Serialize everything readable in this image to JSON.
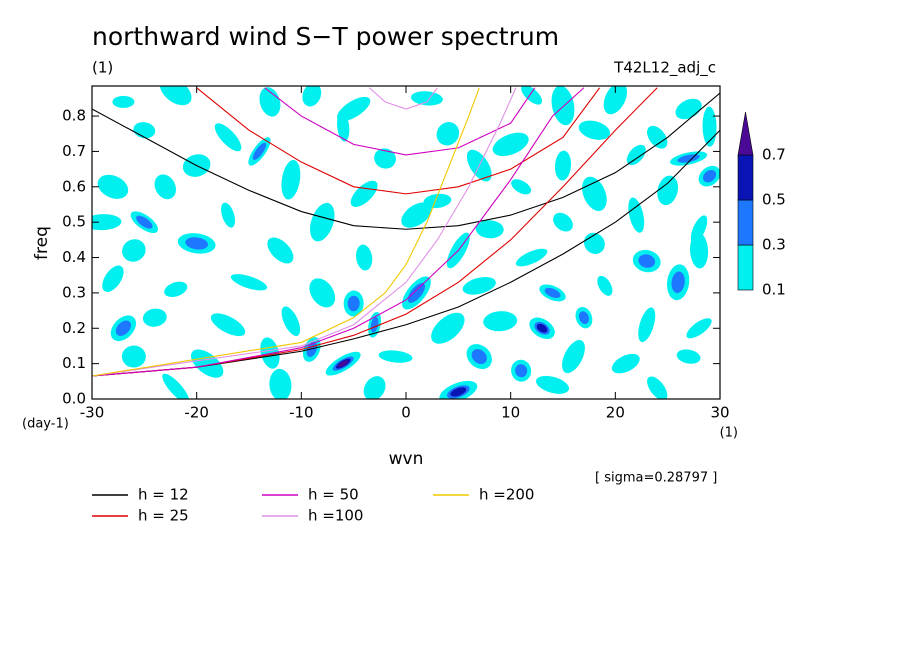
{
  "chart_data": {
    "type": "contour",
    "title": "northward wind S−T power spectrum",
    "subtitle": "(1)",
    "run_label": "T42L12_adj_c",
    "x_label": "wvn",
    "y_label": "freq",
    "y_unit": "(day-1)",
    "x_unit": "(1)",
    "annotation": "[ sigma=0.28797 ]",
    "xlim": [
      -30,
      30
    ],
    "ylim": [
      0,
      0.885
    ],
    "xticks": [
      -30,
      -20,
      -10,
      0,
      10,
      20,
      30
    ],
    "yticks": [
      {
        "value": 0,
        "label": "0.0"
      },
      0.1,
      0.2,
      0.3,
      0.4,
      0.5,
      0.6,
      0.7,
      0.8
    ],
    "contours": {
      "levels": [
        0.1,
        0.3,
        0.5,
        0.7
      ],
      "colors": [
        "#00f0f0",
        "#1e78ff",
        "#0a14b4",
        "#4b0a96"
      ],
      "x": [
        -27,
        -22,
        -13,
        -9,
        -5,
        2,
        12,
        15,
        20,
        27,
        -25,
        -17,
        -6,
        4,
        10,
        18,
        24,
        29,
        -14,
        -20,
        -2,
        7,
        15,
        22,
        27,
        -28,
        -23,
        -11,
        -4,
        3,
        11,
        18,
        25,
        29,
        -29,
        -25,
        -17,
        -8,
        1,
        8,
        15,
        22,
        28,
        -26,
        -20,
        -12,
        -4,
        5,
        12,
        23,
        18,
        28,
        -28,
        -22,
        -15,
        -8,
        -5,
        1,
        7,
        14,
        19,
        26,
        -27,
        -24,
        -17,
        -11,
        -3,
        4,
        9,
        13,
        17,
        23,
        28,
        -26,
        -19,
        -13,
        -9,
        -6,
        -1,
        7,
        11,
        16,
        21,
        27,
        -22,
        -12,
        -3,
        5,
        14,
        24
      ],
      "y": [
        0.84,
        0.87,
        0.84,
        0.86,
        0.82,
        0.85,
        0.86,
        0.83,
        0.85,
        0.82,
        0.76,
        0.74,
        0.77,
        0.75,
        0.72,
        0.76,
        0.74,
        0.77,
        0.7,
        0.66,
        0.68,
        0.66,
        0.66,
        0.69,
        0.68,
        0.6,
        0.6,
        0.62,
        0.58,
        0.56,
        0.6,
        0.58,
        0.59,
        0.63,
        0.5,
        0.5,
        0.52,
        0.5,
        0.52,
        0.48,
        0.5,
        0.52,
        0.48,
        0.42,
        0.44,
        0.42,
        0.4,
        0.42,
        0.4,
        0.39,
        0.44,
        0.42,
        0.34,
        0.31,
        0.33,
        0.3,
        0.27,
        0.3,
        0.32,
        0.3,
        0.32,
        0.33,
        0.2,
        0.23,
        0.21,
        0.22,
        0.21,
        0.2,
        0.22,
        0.2,
        0.23,
        0.21,
        0.2,
        0.12,
        0.1,
        0.13,
        0.14,
        0.1,
        0.12,
        0.12,
        0.08,
        0.12,
        0.1,
        0.12,
        0.03,
        0.04,
        0.03,
        0.02,
        0.04,
        0.03
      ],
      "values": [
        0.2,
        0.15,
        0.2,
        0.2,
        0.2,
        0.2,
        0.2,
        0.2,
        0.2,
        0.25,
        0.2,
        0.2,
        0.2,
        0.2,
        0.2,
        0.2,
        0.2,
        0.25,
        0.4,
        0.2,
        0.2,
        0.2,
        0.2,
        0.2,
        0.35,
        0.2,
        0.2,
        0.2,
        0.2,
        0.2,
        0.2,
        0.2,
        0.2,
        0.45,
        0.2,
        0.4,
        0.2,
        0.2,
        0.2,
        0.2,
        0.2,
        0.2,
        0.2,
        0.2,
        0.35,
        0.2,
        0.2,
        0.2,
        0.2,
        0.35,
        0.2,
        0.2,
        0.2,
        0.2,
        0.2,
        0.2,
        0.35,
        0.35,
        0.2,
        0.3,
        0.2,
        0.35,
        0.35,
        0.2,
        0.2,
        0.2,
        0.4,
        0.2,
        0.2,
        0.55,
        0.35,
        0.2,
        0.2,
        0.2,
        0.2,
        0.2,
        0.35,
        0.75,
        0.2,
        0.45,
        0.35,
        0.2,
        0.2,
        0.2,
        0.2,
        0.2,
        0.2,
        0.6,
        0.2,
        0.2
      ]
    },
    "series": [
      {
        "name": "h = 12",
        "color": "#000000",
        "curves": [
          {
            "x": [
              -30,
              -25,
              -20,
              -15,
              -10,
              -5,
              0,
              5,
              10,
              15,
              20,
              25,
              30
            ],
            "values": [
              0.82,
              0.74,
              0.66,
              0.59,
              0.53,
              0.49,
              0.48,
              0.49,
              0.52,
              0.57,
              0.64,
              0.74,
              0.865
            ]
          },
          {
            "x": [
              -30,
              -20,
              -10,
              -5,
              0,
              5,
              10,
              15,
              20,
              25,
              30
            ],
            "values": [
              0.065,
              0.09,
              0.135,
              0.17,
              0.21,
              0.26,
              0.33,
              0.41,
              0.5,
              0.61,
              0.76
            ]
          }
        ]
      },
      {
        "name": "h = 25",
        "color": "#e00000",
        "curves": [
          {
            "x": [
              -20,
              -15,
              -10,
              -5,
              0,
              5,
              10,
              15,
              18.5
            ],
            "values": [
              0.88,
              0.76,
              0.67,
              0.6,
              0.58,
              0.6,
              0.65,
              0.74,
              0.88
            ]
          },
          {
            "x": [
              -30,
              -20,
              -10,
              -5,
              0,
              5,
              10,
              15,
              20,
              24
            ],
            "values": [
              0.065,
              0.09,
              0.14,
              0.18,
              0.24,
              0.33,
              0.45,
              0.6,
              0.76,
              0.88
            ]
          }
        ]
      },
      {
        "name": "h = 50",
        "color": "#d000c0",
        "curves": [
          {
            "x": [
              -13.5,
              -10,
              -5,
              0,
              5,
              10,
              12.3
            ],
            "values": [
              0.88,
              0.8,
              0.72,
              0.69,
              0.71,
              0.78,
              0.88
            ]
          },
          {
            "x": [
              -30,
              -20,
              -10,
              -5,
              0,
              5,
              10,
              14,
              17
            ],
            "values": [
              0.065,
              0.09,
              0.145,
              0.2,
              0.28,
              0.42,
              0.62,
              0.8,
              0.88
            ]
          }
        ]
      },
      {
        "name": "h =100",
        "color": "#e090e8",
        "curves": [
          {
            "x": [
              -3.5,
              -2,
              0,
              2,
              3
            ],
            "values": [
              0.88,
              0.84,
              0.82,
              0.84,
              0.88
            ]
          },
          {
            "x": [
              -30,
              -10,
              -5,
              0,
              3,
              6,
              9,
              10.5
            ],
            "values": [
              0.065,
              0.15,
              0.21,
              0.33,
              0.45,
              0.6,
              0.78,
              0.88
            ]
          }
        ]
      },
      {
        "name": "h =200",
        "color": "#f0c800",
        "curves": [
          {
            "x": [
              -30,
              -10,
              -5,
              -2,
              0,
              2,
              4,
              6,
              7
            ],
            "values": [
              0.065,
              0.16,
              0.23,
              0.3,
              0.38,
              0.5,
              0.65,
              0.8,
              0.88
            ]
          }
        ]
      }
    ]
  }
}
